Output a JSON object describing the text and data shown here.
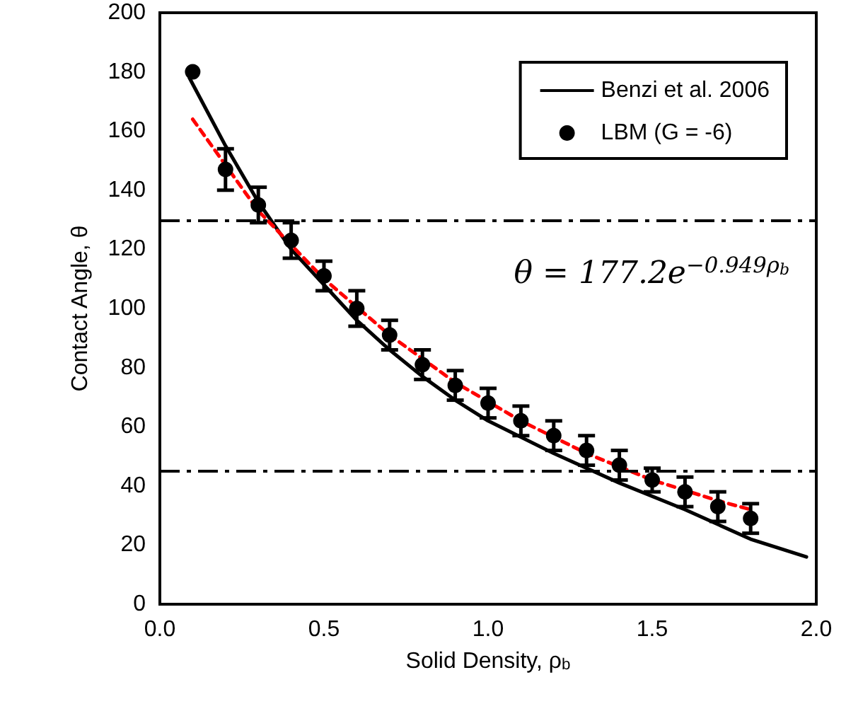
{
  "chart_data": {
    "type": "scatter",
    "xlabel": "Solid Density, ρ$_{b}$",
    "ylabel": "Contact Angle, θ",
    "xlim": [
      0,
      2
    ],
    "ylim": [
      0,
      200
    ],
    "xticks": [
      {
        "value": 0,
        "label": "0.0"
      },
      {
        "value": 0.5,
        "label": "0.5"
      },
      {
        "value": 1,
        "label": "1.0"
      },
      {
        "value": 1.5,
        "label": "1.5"
      },
      {
        "value": 2,
        "label": "2.0"
      }
    ],
    "yticks": [
      0,
      20,
      40,
      60,
      80,
      100,
      120,
      140,
      160,
      180,
      200
    ],
    "grid": false,
    "legend": "top right",
    "series": [
      {
        "name": "Benzi et al. 2006",
        "type": "line",
        "color": "#000000",
        "marker": "none",
        "line_style": "solid",
        "x": [
          0.09,
          0.2,
          0.3,
          0.4,
          0.5,
          0.6,
          0.7,
          0.8,
          0.9,
          1.0,
          1.2,
          1.4,
          1.6,
          1.8,
          1.97
        ],
        "values": [
          178,
          155,
          136,
          120,
          108,
          96,
          86,
          77,
          69,
          62,
          51,
          41,
          32,
          22,
          16
        ]
      },
      {
        "name": "LBM (G = -6)",
        "color": "#000000",
        "marker": "circle",
        "x": [
          0.1,
          0.2,
          0.3,
          0.4,
          0.5,
          0.6,
          0.7,
          0.8,
          0.9,
          1.0,
          1.1,
          1.2,
          1.3,
          1.4,
          1.5,
          1.6,
          1.7,
          1.8
        ],
        "values": [
          180,
          147,
          135,
          123,
          111,
          100,
          91,
          81,
          74,
          68,
          62,
          57,
          52,
          47,
          42,
          38,
          33,
          29
        ],
        "errors": [
          null,
          7,
          6,
          6,
          5,
          6,
          5,
          5,
          5,
          5,
          5,
          5,
          5,
          5,
          4,
          5,
          5,
          5
        ]
      },
      {
        "type": "line",
        "color": "#ff0000",
        "marker": "none",
        "line_style": "dashed",
        "x": [
          0.1,
          0.3,
          0.5,
          0.7,
          0.9,
          1.1,
          1.3,
          1.5,
          1.7,
          1.8
        ],
        "values": [
          164,
          133,
          110,
          91,
          75,
          62,
          51,
          42,
          35,
          32
        ]
      }
    ],
    "ref_lines": [
      {
        "axis": "y",
        "value": 130,
        "color": "#000000",
        "line_style": "dashdot"
      },
      {
        "axis": "y",
        "value": 45,
        "color": "#000000",
        "line_style": "dashdot"
      }
    ],
    "annotations": [
      "θ = 177.2e$^{−0.949ρ}$$_{b}$"
    ]
  }
}
